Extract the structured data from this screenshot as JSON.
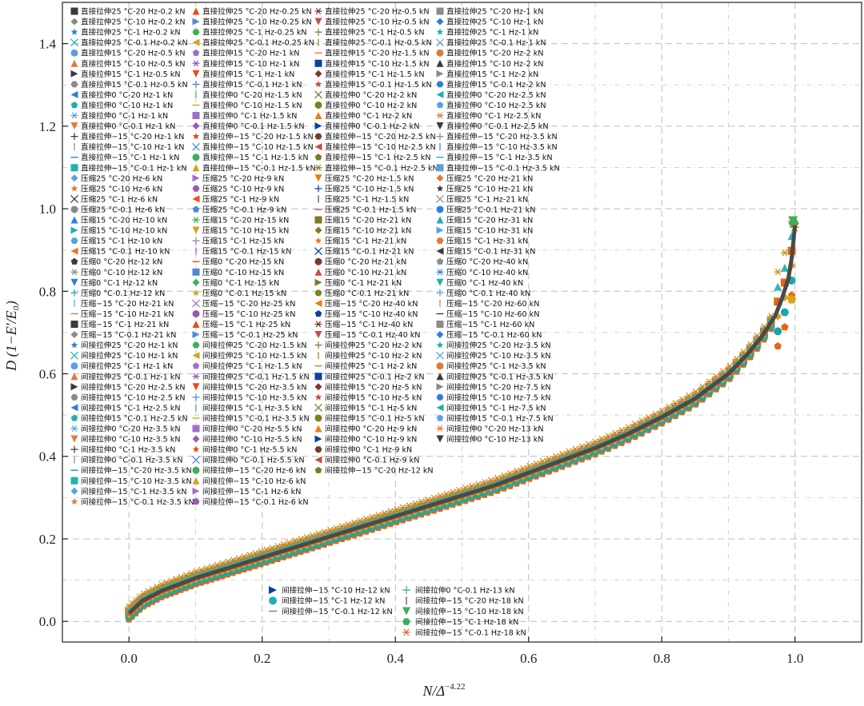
{
  "chart_data": {
    "type": "scatter",
    "title": "",
    "xlabel": "N/Δ^-4.22",
    "xlabel_main": "N/Δ",
    "xlabel_sup": "−4.22",
    "ylabel": "D (1−E′/E₀)",
    "xlim": [
      -0.1,
      1.1
    ],
    "ylim": [
      -0.05,
      1.5
    ],
    "xticks": [
      0.0,
      0.2,
      0.4,
      0.6,
      0.8,
      1.0
    ],
    "xtick_labels": [
      "0.0",
      "0.2",
      "0.4",
      "0.6",
      "0.8",
      "1.0"
    ],
    "yticks": [
      0.0,
      0.2,
      0.4,
      0.6,
      0.8,
      1.0,
      1.2,
      1.4
    ],
    "ytick_labels": [
      "0.0",
      "0.2",
      "0.4",
      "0.6",
      "0.8",
      "1.0",
      "1.2",
      "1.4"
    ],
    "grid": true,
    "trend_curve": {
      "x": [
        0.0,
        0.02,
        0.05,
        0.1,
        0.15,
        0.2,
        0.25,
        0.3,
        0.35,
        0.4,
        0.45,
        0.5,
        0.55,
        0.6,
        0.65,
        0.7,
        0.75,
        0.8,
        0.85,
        0.9,
        0.93,
        0.95,
        0.97,
        0.98,
        0.99,
        0.995,
        1.0
      ],
      "y": [
        0.02,
        0.05,
        0.075,
        0.105,
        0.13,
        0.155,
        0.18,
        0.205,
        0.23,
        0.255,
        0.28,
        0.305,
        0.33,
        0.36,
        0.39,
        0.42,
        0.455,
        0.495,
        0.54,
        0.6,
        0.65,
        0.69,
        0.74,
        0.78,
        0.83,
        0.88,
        0.96
      ]
    },
    "legend_main": [
      [
        "直接拉伸25 °C-20 Hz-0.2 kN",
        "直接拉伸25 °C-20 Hz-0.25 kN",
        "直接拉伸25 °C-20 Hz-0.5 kN",
        "直接拉伸25 °C-20 Hz-1 kN"
      ],
      [
        "直接拉伸25 °C-10 Hz-0.2 kN",
        "直接拉伸25 °C-10 Hz-0.25 kN",
        "直接拉伸25 °C-10 Hz-0.5 kN",
        "直接拉伸25 °C-10 Hz-1 kN"
      ],
      [
        "直接拉伸25 °C-1 Hz-0.2 kN",
        "直接拉伸25 °C-1 Hz-0.25 kN",
        "直接拉伸25 °C-1 Hz-0.5 kN",
        "直接拉伸25 °C-1 Hz-1 kN"
      ],
      [
        "直接拉伸25 °C-0.1 Hz-0.2 kN",
        "直接拉伸25 °C-0.1 Hz-0.25 kN",
        "直接拉伸25 °C-0.1 Hz-0.5 kN",
        "直接拉伸25 °C-0.1 Hz-1 kN"
      ],
      [
        "直接拉伸15 °C-20 Hz-0.5 kN",
        "直接拉伸15 °C-20 Hz-1 kN",
        "直接拉伸15 °C-20 Hz-1.5 kN",
        "直接拉伸15 °C-20 Hz-2 kN"
      ],
      [
        "直接拉伸15 °C-10 Hz-0.5 kN",
        "直接拉伸15 °C-10 Hz-1 kN",
        "直接拉伸15 °C-10 Hz-1.5 kN",
        "直接拉伸15 °C-10 Hz-2 kN"
      ],
      [
        "直接拉伸15 °C-1 Hz-0.5 kN",
        "直接拉伸15 °C-1 Hz-1 kN",
        "直接拉伸15 °C-1 Hz-1.5 kN",
        "直接拉伸15 °C-1 Hz-2 kN"
      ],
      [
        "直接拉伸15 °C-0.1 Hz-0.5 kN",
        "直接拉伸15 °C-0.1 Hz-1 kN",
        "直接拉伸15 °C-0.1 Hz-1.5 kN",
        "直接拉伸15 °C-0.1 Hz-2 kN"
      ],
      [
        "直接拉伸0 °C-20 Hz-1 kN",
        "直接拉伸0 °C-20 Hz-1.5 kN",
        "直接拉伸0 °C-20 Hz-2 kN",
        "直接拉伸0 °C-20 Hz-2.5 kN"
      ],
      [
        "直接拉伸0 °C-10 Hz-1 kN",
        "直接拉伸0 °C-10 Hz-1.5 kN",
        "直接拉伸0 °C-10 Hz-2 kN",
        "直接拉伸0 °C-10 Hz-2.5 kN"
      ],
      [
        "直接拉伸0 °C-1 Hz-1 kN",
        "直接拉伸0 °C-1 Hz-1.5 kN",
        "直接拉伸0 °C-1 Hz-2 kN",
        "直接拉伸0 °C-1 Hz-2.5 kN"
      ],
      [
        "直接拉伸0 °C-0.1 Hz-1 kN",
        "直接拉伸0 °C-0.1 Hz-1.5 kN",
        "直接拉伸0 °C-0.1 Hz-2 kN",
        "直接拉伸0 °C-0.1 Hz-2.5 kN"
      ],
      [
        "直接拉伸−15 °C-20 Hz-1 kN",
        "直接拉伸−15 °C-20 Hz-1.5 kN",
        "直接拉伸−15 °C-20 Hz-2.5 kN",
        "直接拉伸−15 °C-20 Hz-3.5 kN"
      ],
      [
        "直接拉伸−15 °C-10 Hz-1 kN",
        "直接拉伸−15 °C-10 Hz-1.5 kN",
        "直接拉伸−15 °C-10 Hz-2.5 kN",
        "直接拉伸−15 °C-10 Hz-3.5 kN"
      ],
      [
        "直接拉伸−15 °C-1 Hz-1 kN",
        "直接拉伸−15 °C-1 Hz-1.5 kN",
        "直接拉伸−15 °C-1 Hz-2.5 kN",
        "直接拉伸−15 °C-1 Hz-3.5 kN"
      ],
      [
        "直接拉伸−15 °C-0.1 Hz-1 kN",
        "直接拉伸−15 °C-0.1 Hz-1.5 kN",
        "直接拉伸−15 °C-0.1 Hz-2.5 kN",
        "直接拉伸−15 °C-0.1 Hz-3.5 kN"
      ],
      [
        "压缩25 °C-20 Hz-6 kN",
        "压缩25 °C-20 Hz-9 kN",
        "压缩25 °C-20 Hz-1.5 kN",
        "压缩25 °C-20 Hz-21 kN"
      ],
      [
        "压缩25 °C-10 Hz-6 kN",
        "压缩25 °C-10 Hz-9 kN",
        "压缩25 °C-10 Hz-1.5 kN",
        "压缩25 °C-10 Hz-21 kN"
      ],
      [
        "压缩25 °C-1 Hz-6 kN",
        "压缩25 °C-1 Hz-9 kN",
        "压缩25 °C-1 Hz-1.5 kN",
        "压缩25 °C-1 Hz-21 kN"
      ],
      [
        "压缩25 °C-0.1 Hz-6 kN",
        "压缩25 °C-0.1 Hz-9 kN",
        "压缩25 °C-0.1 Hz-1.5 kN",
        "压缩25 °C-0.1 Hz-21 kN"
      ],
      [
        "压缩15 °C-20 Hz-10 kN",
        "压缩15 °C-20 Hz-15 kN",
        "压缩15 °C-20 Hz-21 kN",
        "压缩15 °C-20 Hz-31 kN"
      ],
      [
        "压缩15 °C-10 Hz-10 kN",
        "压缩15 °C-10 Hz-15 kN",
        "压缩15 °C-10 Hz-21 kN",
        "压缩15 °C-10 Hz-31 kN"
      ],
      [
        "压缩15 °C-1 Hz-10 kN",
        "压缩15 °C-1 Hz-15 kN",
        "压缩15 °C-1 Hz-21 kN",
        "压缩15 °C-1 Hz-31 kN"
      ],
      [
        "压缩15 °C-0.1 Hz-10 kN",
        "压缩15 °C-0.1 Hz-15 kN",
        "压缩15 °C-0.1 Hz-21 kN",
        "压缩15 °C-0.1 Hz-31 kN"
      ],
      [
        "压缩0 °C-20 Hz-12 kN",
        "压缩0 °C-20 Hz-15 kN",
        "压缩0 °C-20 Hz-21 kN",
        "压缩0 °C-20 Hz-40 kN"
      ],
      [
        "压缩0 °C-10 Hz-12 kN",
        "压缩0 °C-10 Hz-15 kN",
        "压缩0 °C-10 Hz-21 kN",
        "压缩0 °C-10 Hz-40 kN"
      ],
      [
        "压缩0 °C-1 Hz-12 kN",
        "压缩0 °C-1 Hz-15 kN",
        "压缩0 °C-1 Hz-21 kN",
        "压缩0 °C-1 Hz-40 kN"
      ],
      [
        "压缩0 °C-0.1 Hz-12 kN",
        "压缩0 °C-0.1 Hz-15 kN",
        "压缩0 °C-0.1 Hz-21 kN",
        "压缩0 °C-0.1 Hz-40 kN"
      ],
      [
        "压缩−15 °C-20 Hz-21 kN",
        "压缩−15 °C-20 Hz-25 kN",
        "压缩−15 °C-20 Hz-40 kN",
        "压缩−15 °C-20 Hz-60 kN"
      ],
      [
        "压缩−15 °C-10 Hz-21 kN",
        "压缩−15 °C-10 Hz-25 kN",
        "压缩−15 °C-10 Hz-40 kN",
        "压缩−15 °C-10 Hz-60 kN"
      ],
      [
        "压缩−15 °C-1 Hz-21 kN",
        "压缩−15 °C-1 Hz-25 kN",
        "压缩−15 °C-1 Hz-40 kN",
        "压缩−15 °C-1 Hz-60 kN"
      ],
      [
        "压缩−15 °C-0.1 Hz-21 kN",
        "压缩−15 °C-0.1 Hz-25 kN",
        "压缩−15 °C-0.1 Hz-40 kN",
        "压缩−15 °C-0.1 Hz-60 kN"
      ],
      [
        "间接拉伸25 °C-20 Hz-1 kN",
        "间接拉伸25 °C-20 Hz-1.5 kN",
        "间接拉伸25 °C-20 Hz-2 kN",
        "间接拉伸25 °C-20 Hz-3.5 kN"
      ],
      [
        "间接拉伸25 °C-10 Hz-1 kN",
        "间接拉伸25 °C-10 Hz-1.5 kN",
        "间接拉伸25 °C-10 Hz-2 kN",
        "间接拉伸25 °C-10 Hz-3.5 kN"
      ],
      [
        "间接拉伸25 °C-1 Hz-1 kN",
        "间接拉伸25 °C-1 Hz-1.5 kN",
        "间接拉伸25 °C-1 Hz-2 kN",
        "间接拉伸25 °C-1 Hz-3.5 kN"
      ],
      [
        "间接拉伸25 °C-0.1 Hz-1 kN",
        "间接拉伸25 °C-0.1 Hz-1.5 kN",
        "间接拉伸25 °C-0.1 Hz-2 kN",
        "间接拉伸25 °C-0.1 Hz-3.5 kN"
      ],
      [
        "间接拉伸15 °C-20 Hz-2.5 kN",
        "间接拉伸15 °C-20 Hz-3.5 kN",
        "间接拉伸15 °C-20 Hz-5 kN",
        "间接拉伸15 °C-20 Hz-7.5 kN"
      ],
      [
        "间接拉伸15 °C-10 Hz-2.5 kN",
        "间接拉伸15 °C-10 Hz-3.5 kN",
        "间接拉伸15 °C-10 Hz-5 kN",
        "间接拉伸15 °C-10 Hz-7.5 kN"
      ],
      [
        "间接拉伸15 °C-1 Hz-2.5 kN",
        "间接拉伸15 °C-1 Hz-3.5 kN",
        "间接拉伸15 °C-1 Hz-5 kN",
        "间接拉伸15 °C-1 Hz-7.5 kN"
      ],
      [
        "间接拉伸15 °C-0.1 Hz-2.5 kN",
        "间接拉伸15 °C-0.1 Hz-3.5 kN",
        "间接拉伸15 °C-0.1 Hz-5 kN",
        "间接拉伸15 °C-0.1 Hz-7.5 kN"
      ],
      [
        "间接拉伸0 °C-20 Hz-3.5 kN",
        "间接拉伸0 °C-20 Hz-5.5 kN",
        "间接拉伸0 °C-20 Hz-9 kN",
        "间接拉伸0 °C-20 Hz-13 kN"
      ],
      [
        "间接拉伸0 °C-10 Hz-3.5 kN",
        "间接拉伸0 °C-10 Hz-5.5 kN",
        "间接拉伸0 °C-10 Hz-9 kN",
        "间接拉伸0 °C-10 Hz-13 kN"
      ],
      [
        "间接拉伸0 °C-1 Hz-3.5 kN",
        "间接拉伸0 °C-1 Hz-5.5 kN",
        "间接拉伸0 °C-1 Hz-9 kN",
        ""
      ],
      [
        "间接拉伸0 °C-0.1 Hz-3.5 kN",
        "间接拉伸0 °C-0.1 Hz-5.5 kN",
        "间接拉伸0 °C-0.1 Hz-9 kN",
        ""
      ],
      [
        "间接拉伸−15 °C-20 Hz-3.5 kN",
        "间接拉伸−15 °C-20 Hz-6 kN",
        "间接拉伸−15 °C-20 Hz-12 kN",
        ""
      ],
      [
        "间接拉伸−15 °C-10 Hz-3.5 kN",
        "间接拉伸−15 °C-10 Hz-6 kN",
        "",
        ""
      ],
      [
        "间接拉伸−15 °C-1 Hz-3.5 kN",
        "间接拉伸−15 °C-1 Hz-6 kN",
        "",
        ""
      ],
      [
        "间接拉伸−15 °C-0.1 Hz-3.5 kN",
        "间接拉伸−15 °C-0.1 Hz-6 kN",
        "",
        ""
      ]
    ],
    "legend_bottom": [
      [
        "间接拉伸−15 °C-10 Hz-12 kN",
        "间接拉伸0 °C-0.1 Hz-13 kN"
      ],
      [
        "间接拉伸−15 °C-1 Hz-12 kN",
        "间接拉伸−15 °C-20 Hz-18 kN"
      ],
      [
        "间接拉伸−15 °C-0.1 Hz-12 kN",
        "间接拉伸−15 °C-10 Hz-18 kN"
      ],
      [
        "",
        "间接拉伸−15 °C-1 Hz-18 kN"
      ],
      [
        "",
        "间接拉伸−15 °C-0.1 Hz-18 kN"
      ]
    ],
    "colors": {
      "curve": "#4a4a4a",
      "orange": "#e8640f",
      "teal": "#19a7a7",
      "gold": "#d8a21d",
      "grid": "#bdbdbd"
    }
  }
}
